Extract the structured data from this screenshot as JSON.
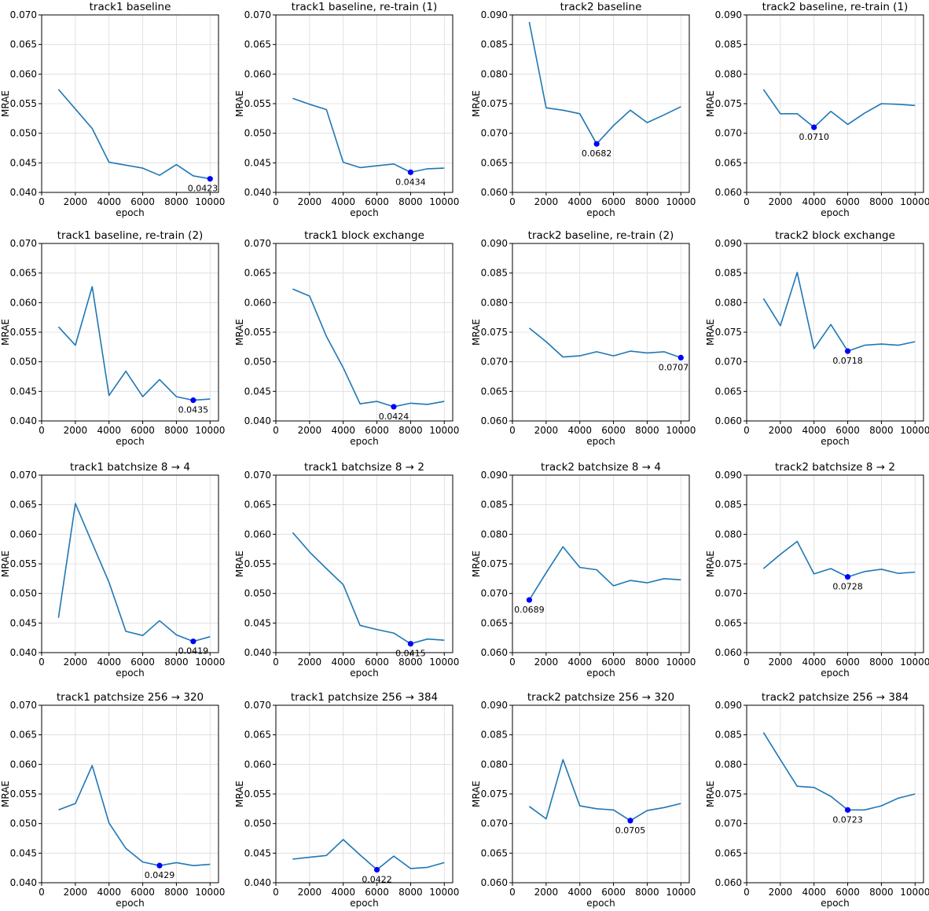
{
  "figure": {
    "line_color": "#1f77b4",
    "marker_color": "#0000ff",
    "grid_color": "#dcdcdc",
    "x_ticks": [
      0,
      2000,
      4000,
      6000,
      8000,
      10000
    ],
    "x_tick_labels": [
      "0",
      "2000",
      "4000",
      "6000",
      "8000",
      "10000"
    ]
  },
  "chart_data": [
    {
      "type": "line",
      "title": "track1 baseline",
      "xlabel": "epoch",
      "ylabel": "MRAE",
      "xlim": [
        0,
        10500
      ],
      "ylim": [
        0.04,
        0.07
      ],
      "y_ticks": [
        0.04,
        0.045,
        0.05,
        0.055,
        0.06,
        0.065,
        0.07
      ],
      "y_tick_labels": [
        "0.040",
        "0.045",
        "0.050",
        "0.055",
        "0.060",
        "0.065",
        "0.070"
      ],
      "x": [
        1000,
        2000,
        3000,
        4000,
        5000,
        6000,
        7000,
        8000,
        9000,
        10000
      ],
      "y": [
        0.0574,
        0.0541,
        0.0508,
        0.0451,
        0.0446,
        0.0441,
        0.0429,
        0.0447,
        0.0428,
        0.0423
      ],
      "best": {
        "x": 10000,
        "y": 0.0423,
        "label": "0.0423"
      }
    },
    {
      "type": "line",
      "title": "track1 baseline, re-train (1)",
      "xlabel": "epoch",
      "ylabel": "MRAE",
      "xlim": [
        0,
        10500
      ],
      "ylim": [
        0.04,
        0.07
      ],
      "y_ticks": [
        0.04,
        0.045,
        0.05,
        0.055,
        0.06,
        0.065,
        0.07
      ],
      "y_tick_labels": [
        "0.040",
        "0.045",
        "0.050",
        "0.055",
        "0.060",
        "0.065",
        "0.070"
      ],
      "x": [
        1000,
        2000,
        3000,
        4000,
        5000,
        6000,
        7000,
        8000,
        9000,
        10000
      ],
      "y": [
        0.0559,
        0.0549,
        0.054,
        0.0451,
        0.0442,
        0.0445,
        0.0448,
        0.0434,
        0.044,
        0.0441
      ],
      "best": {
        "x": 8000,
        "y": 0.0434,
        "label": "0.0434"
      }
    },
    {
      "type": "line",
      "title": "track2 baseline",
      "xlabel": "epoch",
      "ylabel": "MRAE",
      "xlim": [
        0,
        10500
      ],
      "ylim": [
        0.06,
        0.09
      ],
      "y_ticks": [
        0.06,
        0.065,
        0.07,
        0.075,
        0.08,
        0.085,
        0.09
      ],
      "y_tick_labels": [
        "0.060",
        "0.065",
        "0.070",
        "0.075",
        "0.080",
        "0.085",
        "0.090"
      ],
      "x": [
        1000,
        2000,
        3000,
        4000,
        5000,
        6000,
        7000,
        8000,
        9000,
        10000
      ],
      "y": [
        0.0888,
        0.0743,
        0.0739,
        0.0733,
        0.0682,
        0.0713,
        0.0739,
        0.0718,
        0.0731,
        0.0745
      ],
      "best": {
        "x": 5000,
        "y": 0.0682,
        "label": "0.0682"
      }
    },
    {
      "type": "line",
      "title": "track2 baseline, re-train (1)",
      "xlabel": "epoch",
      "ylabel": "MRAE",
      "xlim": [
        0,
        10500
      ],
      "ylim": [
        0.06,
        0.09
      ],
      "y_ticks": [
        0.06,
        0.065,
        0.07,
        0.075,
        0.08,
        0.085,
        0.09
      ],
      "y_tick_labels": [
        "0.060",
        "0.065",
        "0.070",
        "0.075",
        "0.080",
        "0.085",
        "0.090"
      ],
      "x": [
        1000,
        2000,
        3000,
        4000,
        5000,
        6000,
        7000,
        8000,
        9000,
        10000
      ],
      "y": [
        0.0774,
        0.0733,
        0.0733,
        0.071,
        0.0737,
        0.0715,
        0.0734,
        0.075,
        0.0749,
        0.0747
      ],
      "best": {
        "x": 4000,
        "y": 0.071,
        "label": "0.0710"
      }
    },
    {
      "type": "line",
      "title": "track1 baseline, re-train (2)",
      "xlabel": "epoch",
      "ylabel": "MRAE",
      "xlim": [
        0,
        10500
      ],
      "ylim": [
        0.04,
        0.07
      ],
      "y_ticks": [
        0.04,
        0.045,
        0.05,
        0.055,
        0.06,
        0.065,
        0.07
      ],
      "y_tick_labels": [
        "0.040",
        "0.045",
        "0.050",
        "0.055",
        "0.060",
        "0.065",
        "0.070"
      ],
      "x": [
        1000,
        2000,
        3000,
        4000,
        5000,
        6000,
        7000,
        8000,
        9000,
        10000
      ],
      "y": [
        0.0559,
        0.0528,
        0.0627,
        0.0443,
        0.0484,
        0.0441,
        0.047,
        0.0441,
        0.0435,
        0.0437
      ],
      "best": {
        "x": 9000,
        "y": 0.0435,
        "label": "0.0435"
      }
    },
    {
      "type": "line",
      "title": "track1 block exchange",
      "xlabel": "epoch",
      "ylabel": "MRAE",
      "xlim": [
        0,
        10500
      ],
      "ylim": [
        0.04,
        0.07
      ],
      "y_ticks": [
        0.04,
        0.045,
        0.05,
        0.055,
        0.06,
        0.065,
        0.07
      ],
      "y_tick_labels": [
        "0.040",
        "0.045",
        "0.050",
        "0.055",
        "0.060",
        "0.065",
        "0.070"
      ],
      "x": [
        1000,
        2000,
        3000,
        4000,
        5000,
        6000,
        7000,
        8000,
        9000,
        10000
      ],
      "y": [
        0.0623,
        0.0611,
        0.0543,
        0.049,
        0.0429,
        0.0433,
        0.0424,
        0.043,
        0.0428,
        0.0433
      ],
      "best": {
        "x": 7000,
        "y": 0.0424,
        "label": "0.0424"
      }
    },
    {
      "type": "line",
      "title": "track2 baseline, re-train (2)",
      "xlabel": "epoch",
      "ylabel": "MRAE",
      "xlim": [
        0,
        10500
      ],
      "ylim": [
        0.06,
        0.09
      ],
      "y_ticks": [
        0.06,
        0.065,
        0.07,
        0.075,
        0.08,
        0.085,
        0.09
      ],
      "y_tick_labels": [
        "0.060",
        "0.065",
        "0.070",
        "0.075",
        "0.080",
        "0.085",
        "0.090"
      ],
      "x": [
        1000,
        2000,
        3000,
        4000,
        5000,
        6000,
        7000,
        8000,
        9000,
        10000
      ],
      "y": [
        0.0757,
        0.0734,
        0.0708,
        0.071,
        0.0717,
        0.071,
        0.0718,
        0.0715,
        0.0717,
        0.0707
      ],
      "best": {
        "x": 10000,
        "y": 0.0707,
        "label": "0.0707"
      }
    },
    {
      "type": "line",
      "title": "track2 block exchange",
      "xlabel": "epoch",
      "ylabel": "MRAE",
      "xlim": [
        0,
        10500
      ],
      "ylim": [
        0.06,
        0.09
      ],
      "y_ticks": [
        0.06,
        0.065,
        0.07,
        0.075,
        0.08,
        0.085,
        0.09
      ],
      "y_tick_labels": [
        "0.060",
        "0.065",
        "0.070",
        "0.075",
        "0.080",
        "0.085",
        "0.090"
      ],
      "x": [
        1000,
        2000,
        3000,
        4000,
        5000,
        6000,
        7000,
        8000,
        9000,
        10000
      ],
      "y": [
        0.0807,
        0.0761,
        0.0851,
        0.0722,
        0.0763,
        0.0718,
        0.0728,
        0.073,
        0.0728,
        0.0734
      ],
      "best": {
        "x": 6000,
        "y": 0.0718,
        "label": "0.0718"
      }
    },
    {
      "type": "line",
      "title": "track1 batchsize 8 → 4",
      "xlabel": "epoch",
      "ylabel": "MRAE",
      "xlim": [
        0,
        10500
      ],
      "ylim": [
        0.04,
        0.07
      ],
      "y_ticks": [
        0.04,
        0.045,
        0.05,
        0.055,
        0.06,
        0.065,
        0.07
      ],
      "y_tick_labels": [
        "0.040",
        "0.045",
        "0.050",
        "0.055",
        "0.060",
        "0.065",
        "0.070"
      ],
      "x": [
        1000,
        2000,
        3000,
        4000,
        5000,
        6000,
        7000,
        8000,
        9000,
        10000
      ],
      "y": [
        0.0459,
        0.0652,
        0.0585,
        0.0519,
        0.0436,
        0.0429,
        0.0454,
        0.043,
        0.0419,
        0.0427
      ],
      "best": {
        "x": 9000,
        "y": 0.0419,
        "label": "0.0419"
      }
    },
    {
      "type": "line",
      "title": "track1 batchsize 8 → 2",
      "xlabel": "epoch",
      "ylabel": "MRAE",
      "xlim": [
        0,
        10500
      ],
      "ylim": [
        0.04,
        0.07
      ],
      "y_ticks": [
        0.04,
        0.045,
        0.05,
        0.055,
        0.06,
        0.065,
        0.07
      ],
      "y_tick_labels": [
        "0.040",
        "0.045",
        "0.050",
        "0.055",
        "0.060",
        "0.065",
        "0.070"
      ],
      "x": [
        1000,
        2000,
        3000,
        4000,
        5000,
        6000,
        7000,
        8000,
        9000,
        10000
      ],
      "y": [
        0.0603,
        0.057,
        0.0542,
        0.0515,
        0.0446,
        0.0439,
        0.0433,
        0.0415,
        0.0423,
        0.0421
      ],
      "best": {
        "x": 8000,
        "y": 0.0415,
        "label": "0.0415"
      }
    },
    {
      "type": "line",
      "title": "track2 batchsize 8 → 4",
      "xlabel": "epoch",
      "ylabel": "MRAE",
      "xlim": [
        0,
        10500
      ],
      "ylim": [
        0.06,
        0.09
      ],
      "y_ticks": [
        0.06,
        0.065,
        0.07,
        0.075,
        0.08,
        0.085,
        0.09
      ],
      "y_tick_labels": [
        "0.060",
        "0.065",
        "0.070",
        "0.075",
        "0.080",
        "0.085",
        "0.090"
      ],
      "x": [
        1000,
        2000,
        3000,
        4000,
        5000,
        6000,
        7000,
        8000,
        9000,
        10000
      ],
      "y": [
        0.0689,
        0.0735,
        0.0779,
        0.0744,
        0.074,
        0.0713,
        0.0722,
        0.0718,
        0.0725,
        0.0723
      ],
      "best": {
        "x": 1000,
        "y": 0.0689,
        "label": "0.0689"
      }
    },
    {
      "type": "line",
      "title": "track2 batchsize 8 → 2",
      "xlabel": "epoch",
      "ylabel": "MRAE",
      "xlim": [
        0,
        10500
      ],
      "ylim": [
        0.06,
        0.09
      ],
      "y_ticks": [
        0.06,
        0.065,
        0.07,
        0.075,
        0.08,
        0.085,
        0.09
      ],
      "y_tick_labels": [
        "0.060",
        "0.065",
        "0.070",
        "0.075",
        "0.080",
        "0.085",
        "0.090"
      ],
      "x": [
        1000,
        2000,
        3000,
        4000,
        5000,
        6000,
        7000,
        8000,
        9000,
        10000
      ],
      "y": [
        0.0742,
        0.0766,
        0.0788,
        0.0733,
        0.0742,
        0.0728,
        0.0737,
        0.0741,
        0.0734,
        0.0736
      ],
      "best": {
        "x": 6000,
        "y": 0.0728,
        "label": "0.0728"
      }
    },
    {
      "type": "line",
      "title": "track1 patchsize 256 → 320",
      "xlabel": "epoch",
      "ylabel": "MRAE",
      "xlim": [
        0,
        10500
      ],
      "ylim": [
        0.04,
        0.07
      ],
      "y_ticks": [
        0.04,
        0.045,
        0.05,
        0.055,
        0.06,
        0.065,
        0.07
      ],
      "y_tick_labels": [
        "0.040",
        "0.045",
        "0.050",
        "0.055",
        "0.060",
        "0.065",
        "0.070"
      ],
      "x": [
        1000,
        2000,
        3000,
        4000,
        5000,
        6000,
        7000,
        8000,
        9000,
        10000
      ],
      "y": [
        0.0523,
        0.0534,
        0.0598,
        0.0501,
        0.0458,
        0.0435,
        0.0429,
        0.0434,
        0.0429,
        0.0431
      ],
      "best": {
        "x": 7000,
        "y": 0.0429,
        "label": "0.0429"
      }
    },
    {
      "type": "line",
      "title": "track1 patchsize 256 → 384",
      "xlabel": "epoch",
      "ylabel": "MRAE",
      "xlim": [
        0,
        10500
      ],
      "ylim": [
        0.04,
        0.07
      ],
      "y_ticks": [
        0.04,
        0.045,
        0.05,
        0.055,
        0.06,
        0.065,
        0.07
      ],
      "y_tick_labels": [
        "0.040",
        "0.045",
        "0.050",
        "0.055",
        "0.060",
        "0.065",
        "0.070"
      ],
      "x": [
        1000,
        2000,
        3000,
        4000,
        5000,
        6000,
        7000,
        8000,
        9000,
        10000
      ],
      "y": [
        0.044,
        0.0443,
        0.0446,
        0.0473,
        0.0447,
        0.0422,
        0.0445,
        0.0424,
        0.0426,
        0.0434
      ],
      "best": {
        "x": 6000,
        "y": 0.0422,
        "label": "0.0422"
      }
    },
    {
      "type": "line",
      "title": "track2 patchsize 256 → 320",
      "xlabel": "epoch",
      "ylabel": "MRAE",
      "xlim": [
        0,
        10500
      ],
      "ylim": [
        0.06,
        0.09
      ],
      "y_ticks": [
        0.06,
        0.065,
        0.07,
        0.075,
        0.08,
        0.085,
        0.09
      ],
      "y_tick_labels": [
        "0.060",
        "0.065",
        "0.070",
        "0.075",
        "0.080",
        "0.085",
        "0.090"
      ],
      "x": [
        1000,
        2000,
        3000,
        4000,
        5000,
        6000,
        7000,
        8000,
        9000,
        10000
      ],
      "y": [
        0.0729,
        0.0708,
        0.0808,
        0.073,
        0.0725,
        0.0723,
        0.0705,
        0.0722,
        0.0727,
        0.0734
      ],
      "best": {
        "x": 7000,
        "y": 0.0705,
        "label": "0.0705"
      }
    },
    {
      "type": "line",
      "title": "track2 patchsize 256 → 384",
      "xlabel": "epoch",
      "ylabel": "MRAE",
      "xlim": [
        0,
        10500
      ],
      "ylim": [
        0.06,
        0.09
      ],
      "y_ticks": [
        0.06,
        0.065,
        0.07,
        0.075,
        0.08,
        0.085,
        0.09
      ],
      "y_tick_labels": [
        "0.060",
        "0.065",
        "0.070",
        "0.075",
        "0.080",
        "0.085",
        "0.090"
      ],
      "x": [
        1000,
        2000,
        3000,
        4000,
        5000,
        6000,
        7000,
        8000,
        9000,
        10000
      ],
      "y": [
        0.0854,
        0.0808,
        0.0763,
        0.0761,
        0.0746,
        0.0723,
        0.0723,
        0.073,
        0.0743,
        0.075
      ],
      "best": {
        "x": 6000,
        "y": 0.0723,
        "label": "0.0723"
      }
    }
  ]
}
